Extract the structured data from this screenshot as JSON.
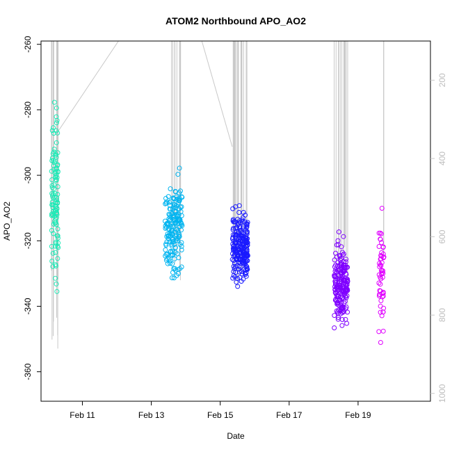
{
  "chart_data": {
    "type": "scatter",
    "title": "ATOM2 Northbound APO_AO2",
    "xlabel": "Date",
    "ylabel": "APO_AO2",
    "x_ticks": [
      "Feb 11",
      "Feb 13",
      "Feb 15",
      "Feb 17",
      "Feb 19"
    ],
    "x_tick_values": [
      11,
      13,
      15,
      17,
      19
    ],
    "xlim": [
      9.8,
      21.1
    ],
    "ylim": [
      -369,
      -259
    ],
    "y_ticks": [
      -360,
      -340,
      -320,
      -300,
      -280,
      -260
    ],
    "right_axis": {
      "ticks": [
        200,
        400,
        600,
        800,
        1000
      ],
      "range": [
        100,
        1020
      ],
      "color": "#c8c8c8",
      "reversed": true
    },
    "grid": false,
    "legend": "none",
    "series": [
      {
        "color": "#1de9b6",
        "x_range": [
          10.1,
          10.3
        ],
        "y_center": -305,
        "y_spread": 22,
        "n": 110
      },
      {
        "color": "#00b4f0",
        "x_range": [
          13.4,
          13.9
        ],
        "y_center": -316,
        "y_spread": 12,
        "n": 170
      },
      {
        "color": "#1a1aff",
        "x_range": [
          15.35,
          15.8
        ],
        "y_center": -322,
        "y_spread": 9,
        "n": 230
      },
      {
        "color": "#7f00ff",
        "x_range": [
          18.3,
          18.7
        ],
        "y_center": -333,
        "y_spread": 11,
        "n": 190
      },
      {
        "color": "#e000ff",
        "x_range": [
          19.6,
          19.75
        ],
        "y_center": -332,
        "y_spread": 14,
        "n": 55
      }
    ],
    "pressure_profile": {
      "color": "#c8c8c8",
      "casts": [
        {
          "x_range": [
            10.1,
            10.3
          ],
          "depth_min": 0,
          "depth_max": 900,
          "n": 14
        },
        {
          "x_range": [
            13.5,
            13.85
          ],
          "depth_min": 0,
          "depth_max": 720,
          "n": 10
        },
        {
          "x_range": [
            15.35,
            15.8
          ],
          "depth_min": 0,
          "depth_max": 780,
          "n": 16
        },
        {
          "x_range": [
            18.3,
            18.75
          ],
          "depth_min": 0,
          "depth_max": 780,
          "n": 14
        },
        {
          "x_range": [
            19.7,
            19.75
          ],
          "depth_min": 0,
          "depth_max": 700,
          "n": 2
        }
      ],
      "transits": [
        {
          "x": [
            10.3,
            12.2
          ],
          "depth": [
            330,
            80
          ]
        },
        {
          "x": [
            14.4,
            15.35
          ],
          "depth": [
            80,
            370
          ]
        }
      ]
    }
  }
}
